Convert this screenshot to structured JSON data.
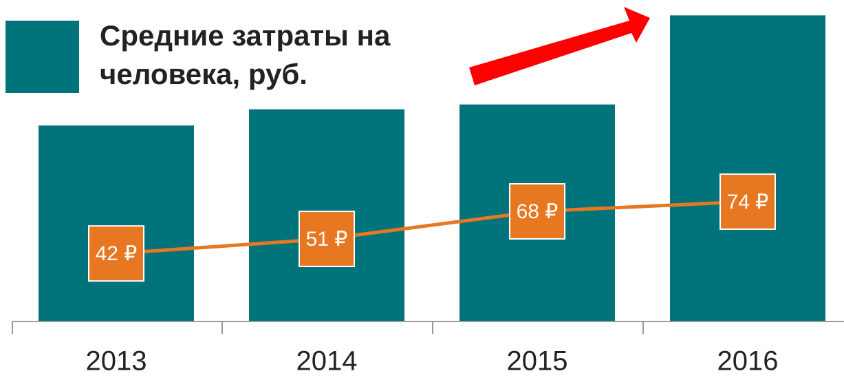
{
  "chart_data": {
    "type": "bar_line",
    "categories": [
      "2013",
      "2014",
      "2015",
      "2016"
    ],
    "series": [
      {
        "name": "Средние затраты на человека, руб.",
        "color": "#00747a",
        "type": "bar",
        "values": [
          121,
          131,
          134,
          189
        ]
      },
      {
        "color": "#e87722",
        "type": "line",
        "values": [
          42,
          51,
          68,
          74
        ],
        "value_labels": [
          "42 ₽",
          "51 ₽",
          "68 ₽",
          "74 ₽"
        ]
      }
    ],
    "ylim": [
      0,
      190
    ]
  }
}
